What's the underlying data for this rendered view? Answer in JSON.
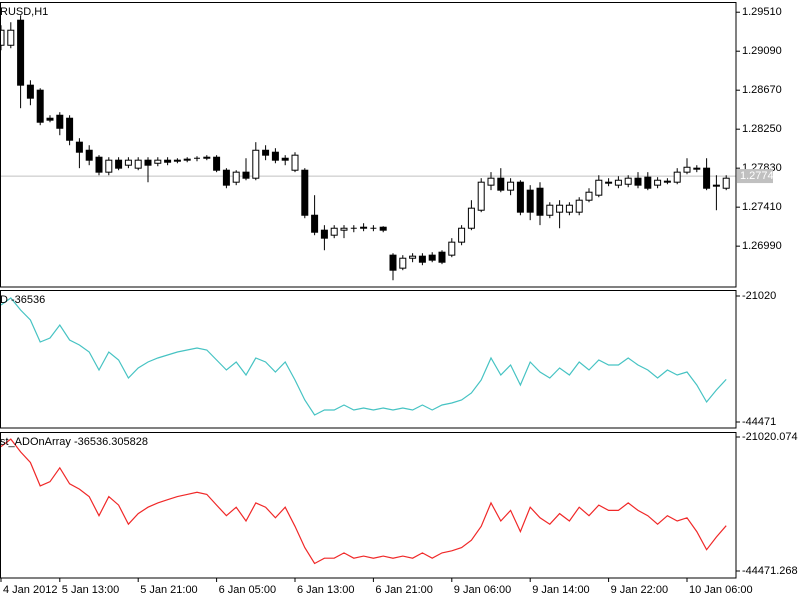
{
  "chart_data": [
    {
      "type": "candlestick",
      "title": "RUSD,H1",
      "open": [
        1.29154,
        1.29154,
        1.29424,
        1.28724,
        1.2867,
        1.28368,
        1.284,
        1.28368,
        1.2811,
        1.28023,
        1.27948,
        1.27787,
        1.27916,
        1.27862,
        1.2783,
        1.27916,
        1.27883,
        1.27916,
        1.27905,
        1.27916,
        1.27927,
        1.27937,
        1.27948,
        1.27808,
        1.27679,
        1.27787,
        1.27722,
        1.28023,
        1.28002,
        1.27937,
        1.27808,
        1.27808,
        1.27323,
        1.27162,
        1.27108,
        1.27162,
        1.27173,
        1.27183,
        1.27183,
        1.27194,
        1.26893,
        1.26753,
        1.2686,
        1.26882,
        1.26893,
        1.26925,
        1.26893,
        1.27033,
        1.27183,
        1.27377,
        1.27647,
        1.27722,
        1.27593,
        1.27679,
        1.27593,
        1.27614,
        1.27323,
        1.27356,
        1.27356,
        1.27356,
        1.27485,
        1.27539,
        1.27679,
        1.27647,
        1.27657,
        1.27722,
        1.27733,
        1.27647,
        1.27679,
        1.27679,
        1.27787,
        1.2783,
        1.2783,
        1.27647,
        1.27614
      ],
      "high": [
        1.2937,
        1.29402,
        1.29477,
        1.28777,
        1.28691,
        1.284,
        1.28433,
        1.284,
        1.28153,
        1.28077,
        1.2797,
        1.27948,
        1.27948,
        1.27948,
        1.27948,
        1.27948,
        1.27948,
        1.27948,
        1.27937,
        1.27948,
        1.27959,
        1.2797,
        1.2797,
        1.2783,
        1.27808,
        1.27937,
        1.2811,
        1.28077,
        1.28045,
        1.2797,
        1.28002,
        1.2783,
        1.27539,
        1.27216,
        1.27216,
        1.27216,
        1.27216,
        1.27237,
        1.27216,
        1.27205,
        1.26914,
        1.26893,
        1.26914,
        1.26914,
        1.26925,
        1.26946,
        1.27076,
        1.27216,
        1.27485,
        1.27722,
        1.27787,
        1.2783,
        1.27722,
        1.277,
        1.27647,
        1.27679,
        1.27463,
        1.27485,
        1.27463,
        1.27517,
        1.27614,
        1.27754,
        1.27722,
        1.27743,
        1.27754,
        1.27787,
        1.27787,
        1.27733,
        1.27722,
        1.2783,
        1.27937,
        1.27862,
        1.27937,
        1.27754,
        1.27754
      ],
      "low": [
        1.291,
        1.29122,
        1.28476,
        1.28508,
        1.28293,
        1.28325,
        1.28185,
        1.28077,
        1.2783,
        1.27862,
        1.27754,
        1.27754,
        1.27808,
        1.2783,
        1.27808,
        1.27679,
        1.27851,
        1.27862,
        1.27883,
        1.27894,
        1.27905,
        1.27916,
        1.27787,
        1.27614,
        1.27647,
        1.277,
        1.277,
        1.27916,
        1.27883,
        1.27862,
        1.27787,
        1.27291,
        1.27108,
        1.26946,
        1.27076,
        1.27076,
        1.2714,
        1.27151,
        1.27151,
        1.2714,
        1.26623,
        1.26731,
        1.26817,
        1.26785,
        1.26817,
        1.26796,
        1.26871,
        1.27,
        1.27162,
        1.27356,
        1.27593,
        1.27571,
        1.27539,
        1.27323,
        1.2727,
        1.27216,
        1.27291,
        1.27183,
        1.27323,
        1.27323,
        1.27463,
        1.27517,
        1.27636,
        1.27614,
        1.27625,
        1.27614,
        1.27593,
        1.27614,
        1.27657,
        1.27657,
        1.27765,
        1.27787,
        1.27593,
        1.27377,
        1.27593
      ],
      "close": [
        1.29316,
        1.29316,
        1.28724,
        1.28584,
        1.28325,
        1.28347,
        1.2826,
        1.28131,
        1.28002,
        1.27916,
        1.27787,
        1.27916,
        1.2783,
        1.27916,
        1.27916,
        1.27862,
        1.27916,
        1.27894,
        1.27916,
        1.27927,
        1.27937,
        1.27948,
        1.27808,
        1.27647,
        1.27787,
        1.27722,
        1.28023,
        1.2797,
        1.27916,
        1.27916,
        1.2797,
        1.27323,
        1.2714,
        1.27076,
        1.27183,
        1.27183,
        1.27183,
        1.27194,
        1.27173,
        1.27162,
        1.26731,
        1.2686,
        1.26882,
        1.26817,
        1.26839,
        1.26817,
        1.27033,
        1.27183,
        1.27399,
        1.27679,
        1.27722,
        1.27593,
        1.27679,
        1.27356,
        1.27356,
        1.27323,
        1.27431,
        1.27431,
        1.27431,
        1.27485,
        1.27571,
        1.277,
        1.27668,
        1.277,
        1.27722,
        1.27647,
        1.27614,
        1.277,
        1.2769,
        1.27787,
        1.2784,
        1.27819,
        1.27614,
        1.27636,
        1.27722
      ],
      "up_color": "#ffffff",
      "down_color": "#000000",
      "bid": 1.27745,
      "bid_color": "#c0c0c0",
      "ylim": [
        1.2655,
        1.2962
      ],
      "yticks": [
        {
          "value": 1.2951,
          "label": "1.29510"
        },
        {
          "value": 1.2909,
          "label": "1.29090"
        },
        {
          "value": 1.2867,
          "label": "1.28670"
        },
        {
          "value": 1.2825,
          "label": "1.28250"
        },
        {
          "value": 1.2783,
          "label": "1.27830"
        },
        {
          "value": 1.2741,
          "label": "1.27410"
        },
        {
          "value": 1.2699,
          "label": "1.26990"
        }
      ]
    },
    {
      "type": "line",
      "title": "D -36536",
      "color": "#46c3c3",
      "values": [
        -22695,
        -21392,
        -23625,
        -25486,
        -29581,
        -28836,
        -26417,
        -29208,
        -30139,
        -31442,
        -34791,
        -31442,
        -32930,
        -36280,
        -34419,
        -33303,
        -32558,
        -32000,
        -31442,
        -31069,
        -30697,
        -31069,
        -32930,
        -34791,
        -33303,
        -35722,
        -32558,
        -33303,
        -35164,
        -33303,
        -36652,
        -40374,
        -43166,
        -42235,
        -42235,
        -41305,
        -42235,
        -41863,
        -42235,
        -41863,
        -42235,
        -41863,
        -42235,
        -41305,
        -42235,
        -41305,
        -40933,
        -40374,
        -39072,
        -36652,
        -32558,
        -35722,
        -33861,
        -37583,
        -33303,
        -35164,
        -36280,
        -34419,
        -35722,
        -33303,
        -34791,
        -32930,
        -33861,
        -33861,
        -32558,
        -33861,
        -34791,
        -36280,
        -34791,
        -35722,
        -35164,
        -37583,
        -40747,
        -38513,
        -36536
      ],
      "ylim": [
        -45588,
        -19903
      ],
      "yticks": [
        -21020,
        -44471
      ]
    },
    {
      "type": "line",
      "title": "st_ADOnArray -36536.305828",
      "color": "#f02828",
      "values": [
        -22695,
        -21392,
        -23625,
        -25486,
        -29581,
        -28836,
        -26417,
        -29208,
        -30139,
        -31442,
        -34791,
        -31442,
        -32930,
        -36280,
        -34419,
        -33303,
        -32558,
        -32000,
        -31442,
        -31069,
        -30697,
        -31069,
        -32930,
        -34791,
        -33303,
        -35722,
        -32558,
        -33303,
        -35164,
        -33303,
        -36652,
        -40374,
        -43166,
        -42235,
        -42235,
        -41305,
        -42235,
        -41863,
        -42235,
        -41863,
        -42235,
        -41863,
        -42235,
        -41305,
        -42235,
        -41305,
        -40933,
        -40374,
        -39072,
        -36652,
        -32558,
        -35722,
        -33861,
        -37583,
        -33303,
        -35164,
        -36280,
        -34419,
        -35722,
        -33303,
        -34791,
        -32930,
        -33861,
        -33861,
        -32558,
        -33861,
        -34791,
        -36280,
        -34791,
        -35722,
        -35164,
        -37583,
        -40747,
        -38513,
        -36536.305828
      ],
      "ylim": [
        -45696,
        -20145
      ],
      "yticks": [
        -21020.074,
        -44471.268
      ],
      "categories": [
        "4 Jan 2012",
        null,
        null,
        null,
        null,
        null,
        "5 Jan 13:00",
        null,
        null,
        null,
        null,
        null,
        null,
        null,
        "5 Jan 21:00",
        null,
        null,
        null,
        null,
        null,
        null,
        null,
        "6 Jan 05:00",
        null,
        null,
        null,
        null,
        null,
        null,
        null,
        "6 Jan 13:00",
        null,
        null,
        null,
        null,
        null,
        null,
        null,
        "6 Jan 21:00",
        null,
        null,
        null,
        null,
        null,
        null,
        null,
        "9 Jan 06:00",
        null,
        null,
        null,
        null,
        null,
        null,
        null,
        "9 Jan 14:00",
        null,
        null,
        null,
        null,
        null,
        null,
        null,
        "9 Jan 22:00",
        null,
        null,
        null,
        null,
        null,
        null,
        null,
        "10 Jan 06:00",
        null,
        null,
        null,
        null
      ]
    }
  ]
}
